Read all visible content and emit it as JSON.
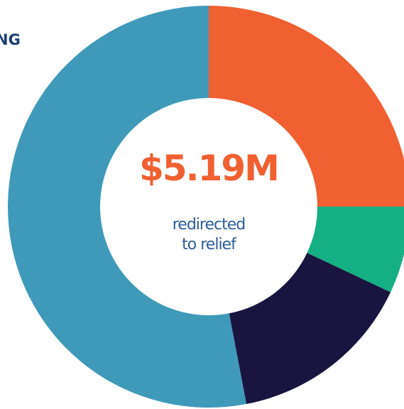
{
  "chart_data": {
    "type": "donut",
    "heading": "NG",
    "center_value": "$5.19M",
    "center_label": [
      "redirected",
      "to relief"
    ],
    "values": [
      25,
      7,
      15,
      53
    ],
    "colors": [
      "#f06030",
      "#14b083",
      "#191440",
      "#3f9aba"
    ]
  }
}
